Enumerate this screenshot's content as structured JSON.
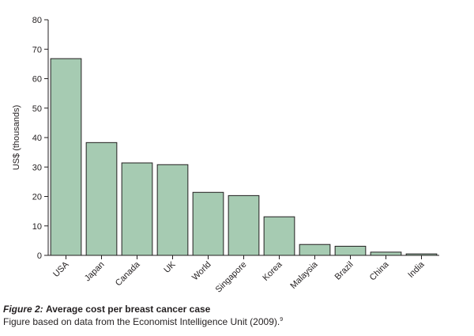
{
  "chart_data": {
    "type": "bar",
    "categories": [
      "USA",
      "Japan",
      "Canada",
      "UK",
      "World",
      "Singapore",
      "Korea",
      "Malaysia",
      "Brazil",
      "China",
      "India"
    ],
    "values": [
      66.8,
      38.3,
      31.4,
      30.8,
      21.4,
      20.3,
      13.1,
      3.7,
      3.1,
      1.1,
      0.5
    ],
    "ylabel": "US$ (thousands)",
    "xlabel": "",
    "ylim": [
      0,
      80
    ],
    "yticks": [
      0,
      10,
      20,
      30,
      40,
      50,
      60,
      70,
      80
    ],
    "grid": false,
    "colors": {
      "bar_fill": "#a6cbb2",
      "bar_stroke": "#231f20",
      "axis": "#231f20"
    }
  },
  "caption": {
    "label": "Figure 2:",
    "title": "Average cost per breast cancer case",
    "note": "Figure based on data from the Economist Intelligence Unit (2009).",
    "ref": "9"
  }
}
